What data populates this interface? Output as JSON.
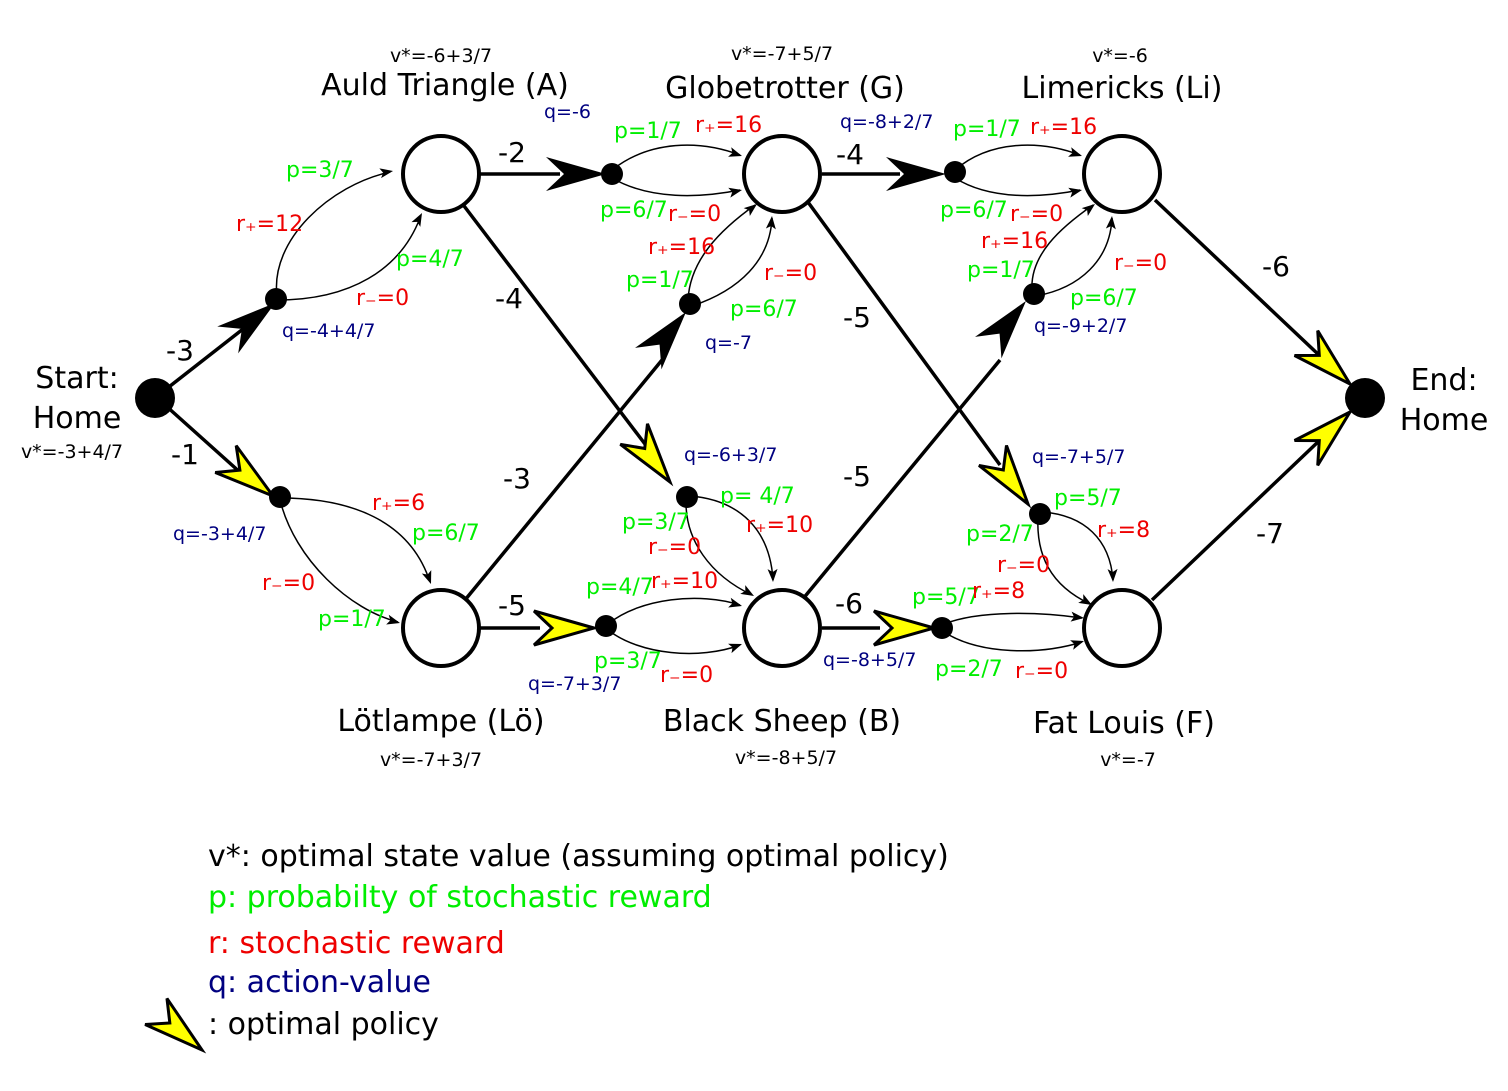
{
  "nodes": {
    "start": {
      "title_line1": "Start:",
      "title_line2": "Home",
      "value": "v*=-3+4/7"
    },
    "end": {
      "title_line1": "End:",
      "title_line2": "Home"
    },
    "A": {
      "title": "Auld Triangle (A)",
      "value": "v*=-6+3/7"
    },
    "G": {
      "title": "Globetrotter (G)",
      "value": "v*=-7+5/7"
    },
    "Li": {
      "title": "Limericks (Li)",
      "value": "v*=-6"
    },
    "Lo": {
      "title": "Lötlampe (Lö)",
      "value": "v*=-7+3/7"
    },
    "B": {
      "title": "Black Sheep (B)",
      "value": "v*=-8+5/7"
    },
    "F": {
      "title": "Fat Louis (F)",
      "value": "v*=-7"
    }
  },
  "edges": {
    "start_A": "-3",
    "start_Lo": "-1",
    "A_G": "-2",
    "A_B": "-4",
    "Lo_B": "-5",
    "Lo_G": "-3",
    "G_Li": "-4",
    "G_F": "-5",
    "B_F": "-6",
    "B_Li": "-5",
    "Li_end": "-6",
    "F_end": "-7"
  },
  "chance": {
    "start_A": {
      "q": "q=-4+4/7",
      "p_plus": "p=3/7",
      "r_plus": "r₊=12",
      "p_minus": "p=4/7",
      "r_minus": "r₋=0"
    },
    "start_Lo": {
      "q": "q=-3+4/7",
      "p_plus": "p=6/7",
      "r_plus": "r₊=6",
      "p_minus": "p=1/7",
      "r_minus": "r₋=0"
    },
    "A_G": {
      "q": "q=-6",
      "p_plus": "p=1/7",
      "r_plus": "r₊=16",
      "p_minus": "p=6/7",
      "r_minus": "r₋=0"
    },
    "Lo_G": {
      "q": "q=-7",
      "p_plus": "p=1/7",
      "r_plus": "r₊=16",
      "p_minus": "p=6/7",
      "r_minus": "r₋=0"
    },
    "G_Li": {
      "q": "q=-8+2/7",
      "p_plus": "p=1/7",
      "r_plus": "r₊=16",
      "p_minus": "p=6/7",
      "r_minus": "r₋=0"
    },
    "B_Li": {
      "q": "q=-9+2/7",
      "p_plus": "p=1/7",
      "r_plus": "r₊=16",
      "p_minus": "p=6/7",
      "r_minus": "r₋=0"
    },
    "A_B": {
      "q": "q=-6+3/7",
      "p_plus": "p= 4/7",
      "r_plus": "r₊=10",
      "p_minus": "p=3/7",
      "r_minus": "r₋=0"
    },
    "Lo_B": {
      "q": "q=-7+3/7",
      "p_plus": "p=4/7",
      "r_plus": "r₊=10",
      "p_minus": "p=3/7",
      "r_minus": "r₋=0"
    },
    "G_F": {
      "q": "q=-7+5/7",
      "p_plus": "p=5/7",
      "r_plus": "r₊=8",
      "p_minus": "p=2/7",
      "r_minus": "r₋=0"
    },
    "B_F": {
      "q": "q=-8+5/7",
      "p_plus": "p=5/7",
      "r_plus": "r₊=8",
      "p_minus": "p=2/7",
      "r_minus": "r₋=0"
    }
  },
  "legend": {
    "v": "v*: optimal state value (assuming optimal policy)",
    "p": "p: probabilty of stochastic reward",
    "r": "r: stochastic reward",
    "q": "q: action-value",
    "policy": ": optimal policy"
  },
  "colors": {
    "p": "#00ee00",
    "r": "#ee0000",
    "q": "#000080",
    "optimal_arrow": "#ffff00"
  }
}
